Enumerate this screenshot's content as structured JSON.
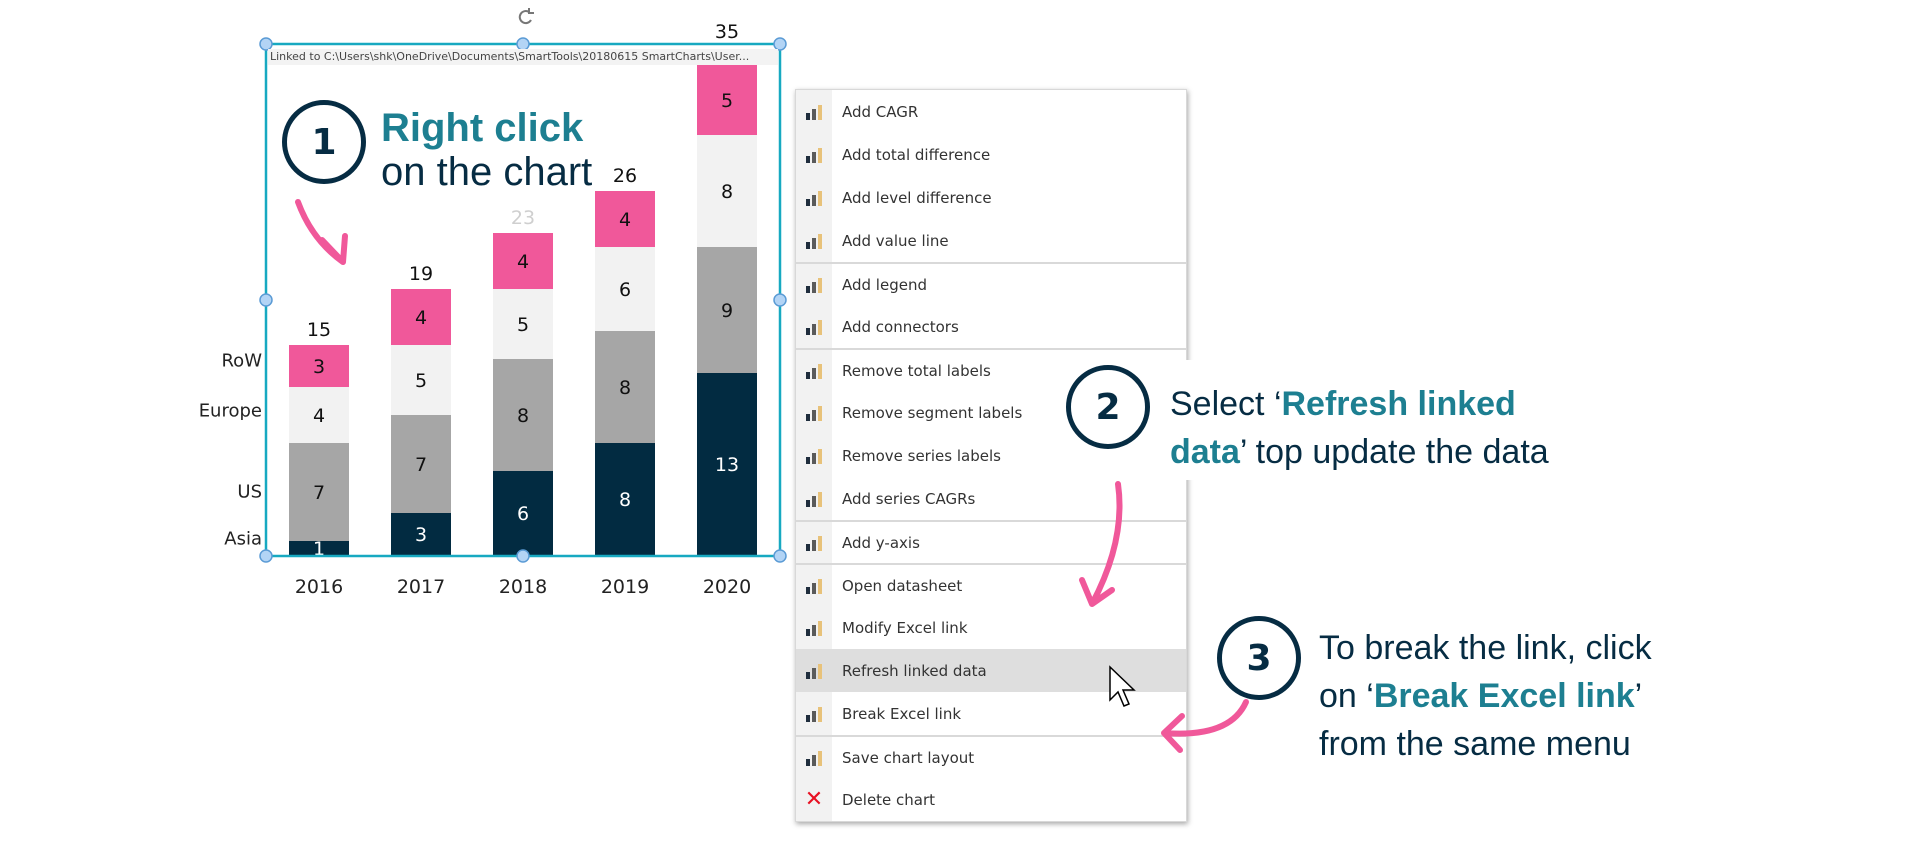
{
  "chart": {
    "linked_text": "Linked to C:\\Users\\shk\\OneDrive\\Documents\\SmartTools\\20180615 SmartCharts\\User...",
    "selection_color": "#17a9c1"
  },
  "chart_data": {
    "type": "bar",
    "stacked": true,
    "categories": [
      "2016",
      "2017",
      "2018",
      "2019",
      "2020"
    ],
    "series": [
      {
        "name": "Asia",
        "color": "#022b41",
        "values": [
          1,
          3,
          6,
          8,
          13
        ]
      },
      {
        "name": "US",
        "color": "#a6a6a6",
        "values": [
          7,
          7,
          8,
          8,
          9
        ]
      },
      {
        "name": "Europe",
        "color": "#f2f2f2",
        "values": [
          4,
          5,
          5,
          6,
          8
        ]
      },
      {
        "name": "RoW",
        "color": "#f0589a",
        "values": [
          3,
          4,
          4,
          4,
          5
        ]
      }
    ],
    "totals": [
      "15",
      "19",
      "23",
      "26",
      "35"
    ],
    "ylim": [
      0,
      35
    ],
    "grid": false
  },
  "menu": {
    "items": [
      {
        "label": "Add CAGR",
        "icon": "add-cagr-icon"
      },
      {
        "label": "Add total difference",
        "icon": "add-total-difference-icon"
      },
      {
        "label": "Add level difference",
        "icon": "add-level-difference-icon"
      },
      {
        "label": "Add value line",
        "icon": "add-value-line-icon"
      },
      {
        "label": "Add legend",
        "icon": "add-legend-icon",
        "sep": true
      },
      {
        "label": "Add connectors",
        "icon": "add-connectors-icon"
      },
      {
        "label": "Remove total labels",
        "icon": "remove-total-labels-icon",
        "sep": true
      },
      {
        "label": "Remove segment labels",
        "icon": "remove-segment-labels-icon"
      },
      {
        "label": "Remove series labels",
        "icon": "remove-series-labels-icon"
      },
      {
        "label": "Add series CAGRs",
        "icon": "add-series-cagrs-icon"
      },
      {
        "label": "Add y-axis",
        "icon": "add-y-axis-icon",
        "sep": true
      },
      {
        "label": "Open datasheet",
        "icon": "open-datasheet-icon",
        "sep": true
      },
      {
        "label": "Modify Excel link",
        "icon": "modify-excel-link-icon"
      },
      {
        "label": "Refresh linked data",
        "icon": "refresh-linked-data-icon",
        "highlighted": true
      },
      {
        "label": "Break Excel link",
        "icon": "break-excel-link-icon"
      },
      {
        "label": "Save chart layout",
        "icon": "save-chart-layout-icon",
        "sep": true
      },
      {
        "label": "Delete chart",
        "icon": "delete-chart-icon"
      }
    ]
  },
  "annotations": {
    "step1": {
      "num": "1",
      "bold": "Right click",
      "line2": "on the chart"
    },
    "step2": {
      "num": "2",
      "pre": "Select ‘",
      "bold1": "Refresh linked",
      "bold2": "data",
      "post": "’ top update the data"
    },
    "step3": {
      "num": "3",
      "line1": "To break the link, click",
      "pre": "on ‘",
      "bold": "Break Excel link",
      "post": "’",
      "line3": "from the same menu"
    },
    "accent_color": "#1d7f91",
    "arrow_color": "#f0589a"
  }
}
